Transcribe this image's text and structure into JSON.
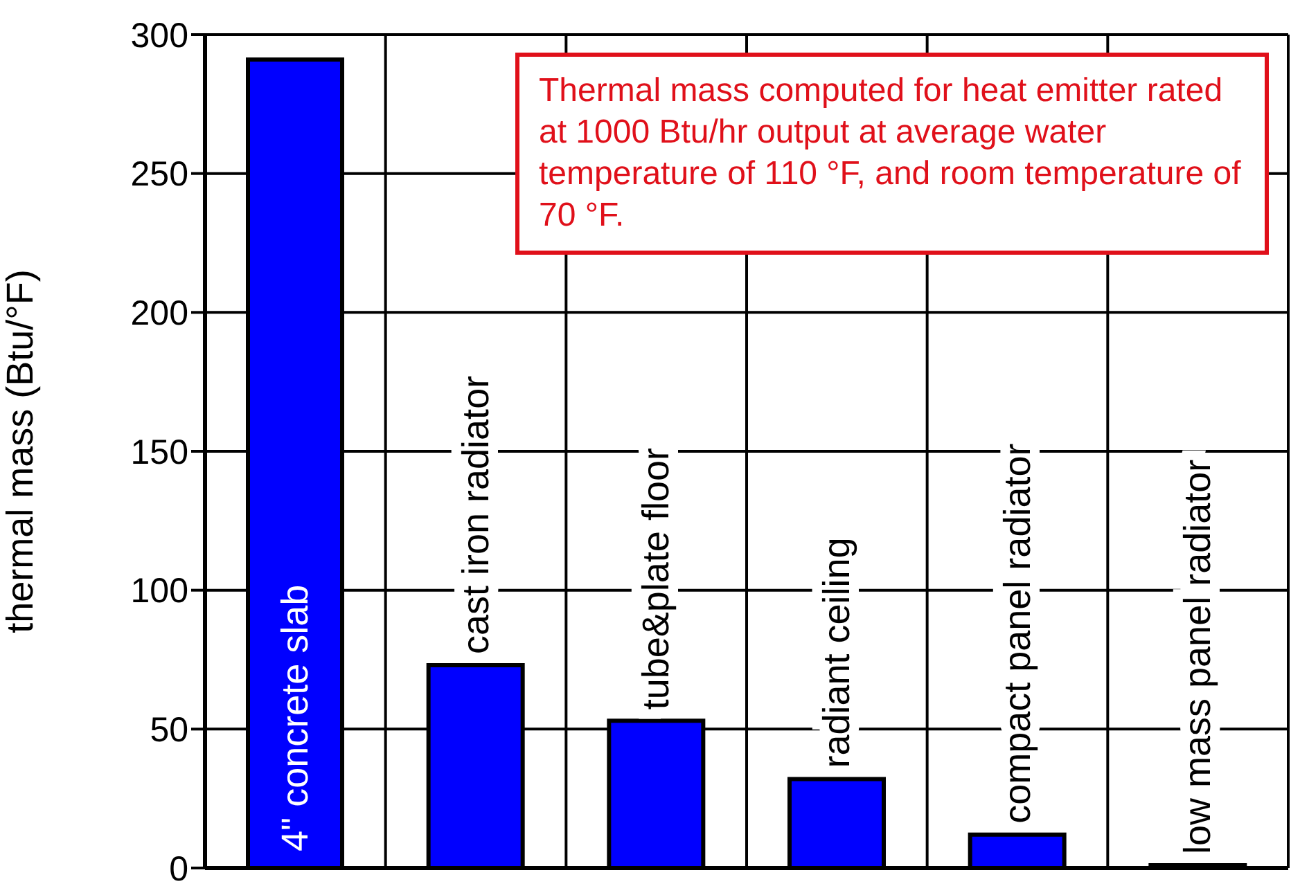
{
  "chart_data": {
    "type": "bar",
    "ylabel": "thermal mass (Btu/°F)",
    "categories": [
      "4\" concrete slab",
      "cast iron radiator",
      "tube&plate floor",
      "radiant ceiling",
      "compact panel radiator",
      "low mass panel radiator"
    ],
    "values": [
      291,
      73,
      53,
      32,
      12,
      1
    ],
    "color": "#0000ff",
    "ylim": [
      0,
      300
    ],
    "yticks": [
      0,
      50,
      100,
      150,
      200,
      250,
      300
    ],
    "grid": true,
    "annotations": [
      "Thermal mass computed for heat emitter rated at 1000 Btu/hr output at average water temperature of 110 °F, and room temperature of 70 °F."
    ]
  }
}
